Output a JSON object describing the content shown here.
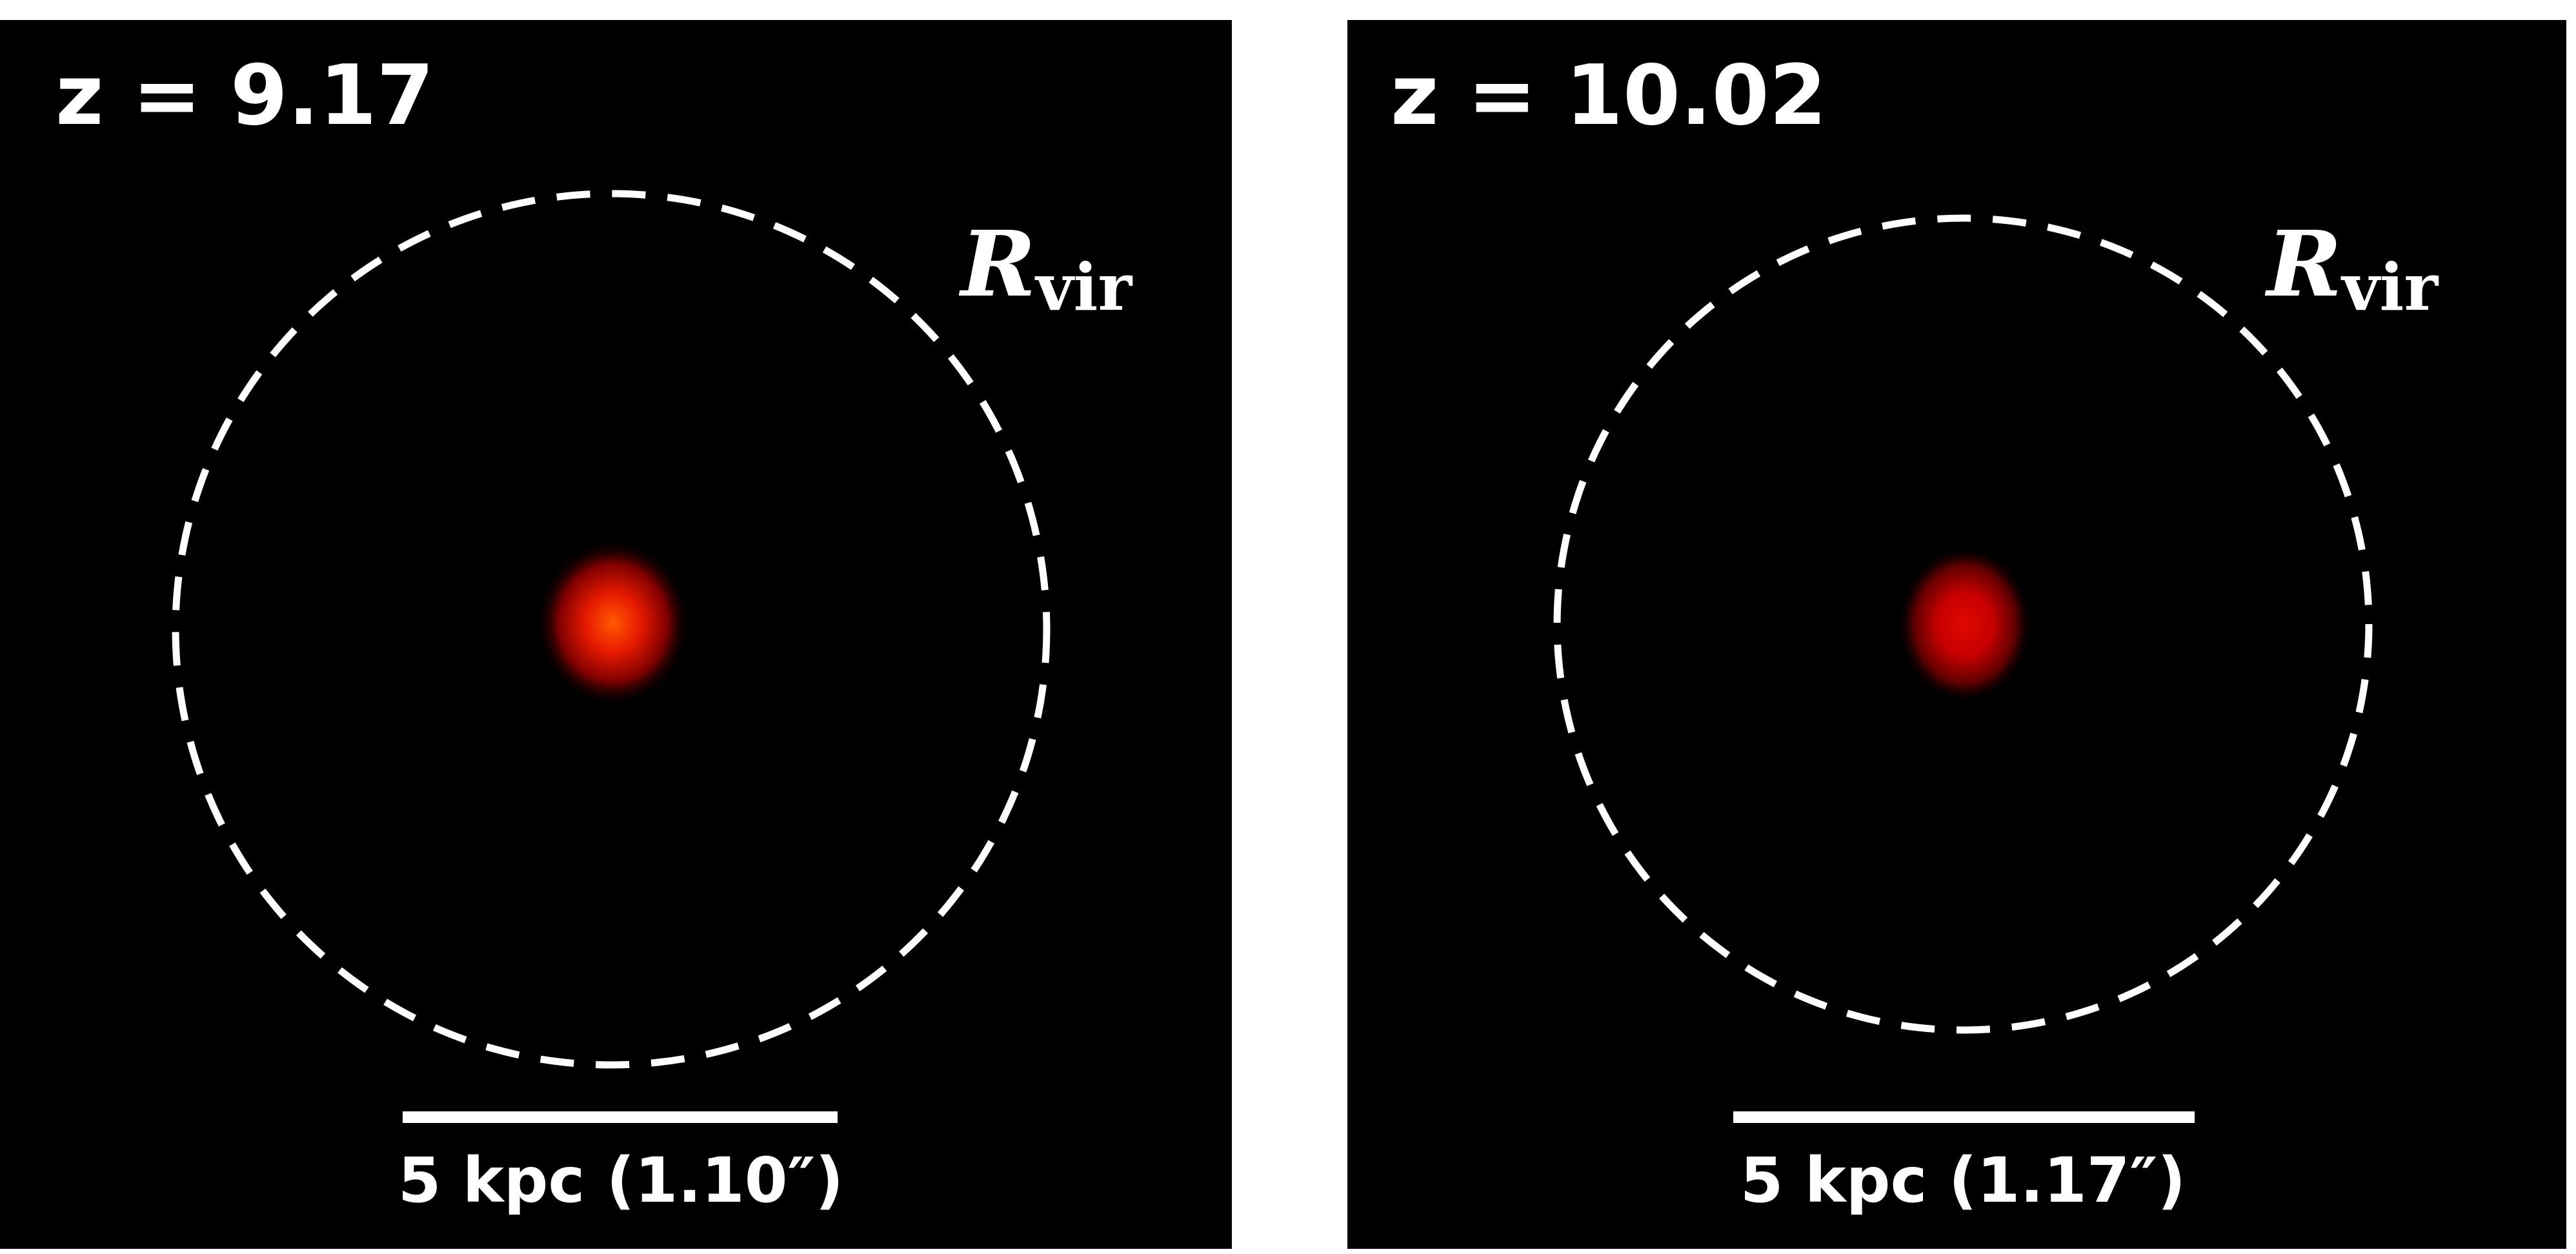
{
  "panels": [
    {
      "label": "z = 9.17",
      "circle_label": {
        "main": "R",
        "sub": "vir"
      },
      "scale_bar": "5 kpc (1.10″)"
    },
    {
      "label": "z = 10.02",
      "circle_label": {
        "main": "R",
        "sub": "vir"
      },
      "scale_bar": "5 kpc (1.17″)"
    }
  ]
}
